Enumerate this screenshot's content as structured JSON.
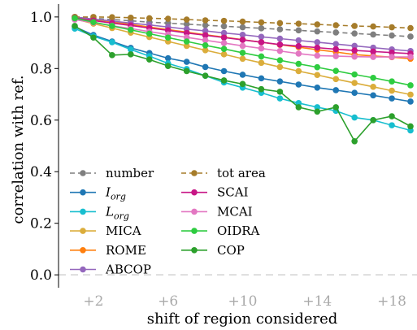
{
  "chart_data": {
    "type": "line",
    "xlabel": "shift of region considered",
    "ylabel": "correlation with ref.",
    "ylim": [
      -0.05,
      1.05
    ],
    "xlim": [
      0,
      19
    ],
    "x_ticks": [
      2,
      6,
      10,
      14,
      18
    ],
    "x_tick_labels": [
      "+2",
      "+6",
      "+10",
      "+14",
      "+18"
    ],
    "y_ticks": [
      0.0,
      0.2,
      0.4,
      0.6,
      0.8,
      1.0
    ],
    "y_tick_labels": [
      "0.0",
      "0.2",
      "0.4",
      "0.6",
      "0.8",
      "1.0"
    ],
    "tick_label_color": "#aaaaaa",
    "grid": false,
    "legend_placement": "lower-left",
    "reference_line": {
      "y": 0.0,
      "style": "dashed",
      "color": "#dddddd"
    },
    "x": [
      1,
      2,
      3,
      4,
      5,
      6,
      7,
      8,
      9,
      10,
      11,
      12,
      13,
      14,
      15,
      16,
      17,
      18,
      19
    ],
    "series": [
      {
        "name": "number",
        "label_sub": "",
        "color": "#7f7f7f",
        "dashed": true,
        "values": [
          1.0,
          0.995,
          0.99,
          0.985,
          0.98,
          0.976,
          0.972,
          0.968,
          0.964,
          0.96,
          0.956,
          0.952,
          0.948,
          0.944,
          0.94,
          0.936,
          0.932,
          0.928,
          0.924
        ]
      },
      {
        "name": "I",
        "label_sub": "org",
        "color": "#1f77b4",
        "dashed": false,
        "values": [
          0.962,
          0.93,
          0.905,
          0.88,
          0.86,
          0.84,
          0.826,
          0.806,
          0.79,
          0.776,
          0.762,
          0.75,
          0.738,
          0.726,
          0.716,
          0.706,
          0.696,
          0.684,
          0.672
        ]
      },
      {
        "name": "L",
        "label_sub": "org",
        "color": "#17becf",
        "dashed": false,
        "values": [
          0.955,
          0.925,
          0.902,
          0.874,
          0.848,
          0.82,
          0.798,
          0.772,
          0.746,
          0.726,
          0.706,
          0.684,
          0.666,
          0.65,
          0.636,
          0.61,
          0.6,
          0.58,
          0.56
        ]
      },
      {
        "name": "MICA",
        "label_sub": "",
        "color": "#dbad3b",
        "dashed": false,
        "values": [
          0.992,
          0.974,
          0.957,
          0.939,
          0.922,
          0.905,
          0.888,
          0.871,
          0.855,
          0.838,
          0.822,
          0.806,
          0.79,
          0.775,
          0.759,
          0.744,
          0.729,
          0.714,
          0.699
        ]
      },
      {
        "name": "ROME",
        "label_sub": "",
        "color": "#ff7f0e",
        "dashed": false,
        "values": [
          1.0,
          0.99,
          0.981,
          0.971,
          0.961,
          0.951,
          0.941,
          0.931,
          0.922,
          0.912,
          0.902,
          0.892,
          0.883,
          0.873,
          0.864,
          0.854,
          0.849,
          0.844,
          0.838
        ]
      },
      {
        "name": "ABCOP",
        "label_sub": "",
        "color": "#9467bd",
        "dashed": false,
        "values": [
          1.0,
          0.992,
          0.984,
          0.976,
          0.969,
          0.961,
          0.953,
          0.946,
          0.938,
          0.931,
          0.923,
          0.916,
          0.909,
          0.902,
          0.895,
          0.888,
          0.881,
          0.874,
          0.868
        ]
      },
      {
        "name": "tot area",
        "label_sub": "",
        "color": "#a67c2a",
        "dashed": true,
        "values": [
          1.0,
          1.0,
          0.999,
          0.997,
          0.995,
          0.993,
          0.99,
          0.987,
          0.985,
          0.982,
          0.979,
          0.976,
          0.974,
          0.971,
          0.968,
          0.965,
          0.963,
          0.96,
          0.957
        ]
      },
      {
        "name": "SCAI",
        "label_sub": "",
        "color": "#c71585",
        "dashed": false,
        "values": [
          0.996,
          0.986,
          0.976,
          0.967,
          0.957,
          0.948,
          0.938,
          0.929,
          0.92,
          0.911,
          0.902,
          0.893,
          0.887,
          0.881,
          0.875,
          0.87,
          0.866,
          0.862,
          0.858
        ]
      },
      {
        "name": "MCAI",
        "label_sub": "",
        "color": "#e377c2",
        "dashed": false,
        "values": [
          0.99,
          0.978,
          0.966,
          0.955,
          0.943,
          0.932,
          0.921,
          0.91,
          0.899,
          0.888,
          0.878,
          0.868,
          0.858,
          0.85,
          0.848,
          0.846,
          0.845,
          0.845,
          0.845
        ]
      },
      {
        "name": "OIDRA",
        "label_sub": "",
        "color": "#2ecc40",
        "dashed": false,
        "values": [
          0.995,
          0.98,
          0.965,
          0.95,
          0.935,
          0.92,
          0.905,
          0.89,
          0.876,
          0.861,
          0.847,
          0.832,
          0.818,
          0.805,
          0.791,
          0.777,
          0.764,
          0.75,
          0.735
        ]
      },
      {
        "name": "COP",
        "label_sub": "",
        "color": "#2ca02c",
        "dashed": false,
        "values": [
          0.965,
          0.92,
          0.852,
          0.855,
          0.835,
          0.81,
          0.79,
          0.772,
          0.754,
          0.74,
          0.72,
          0.71,
          0.65,
          0.633,
          0.65,
          0.518,
          0.6,
          0.615,
          0.576
        ]
      }
    ]
  }
}
